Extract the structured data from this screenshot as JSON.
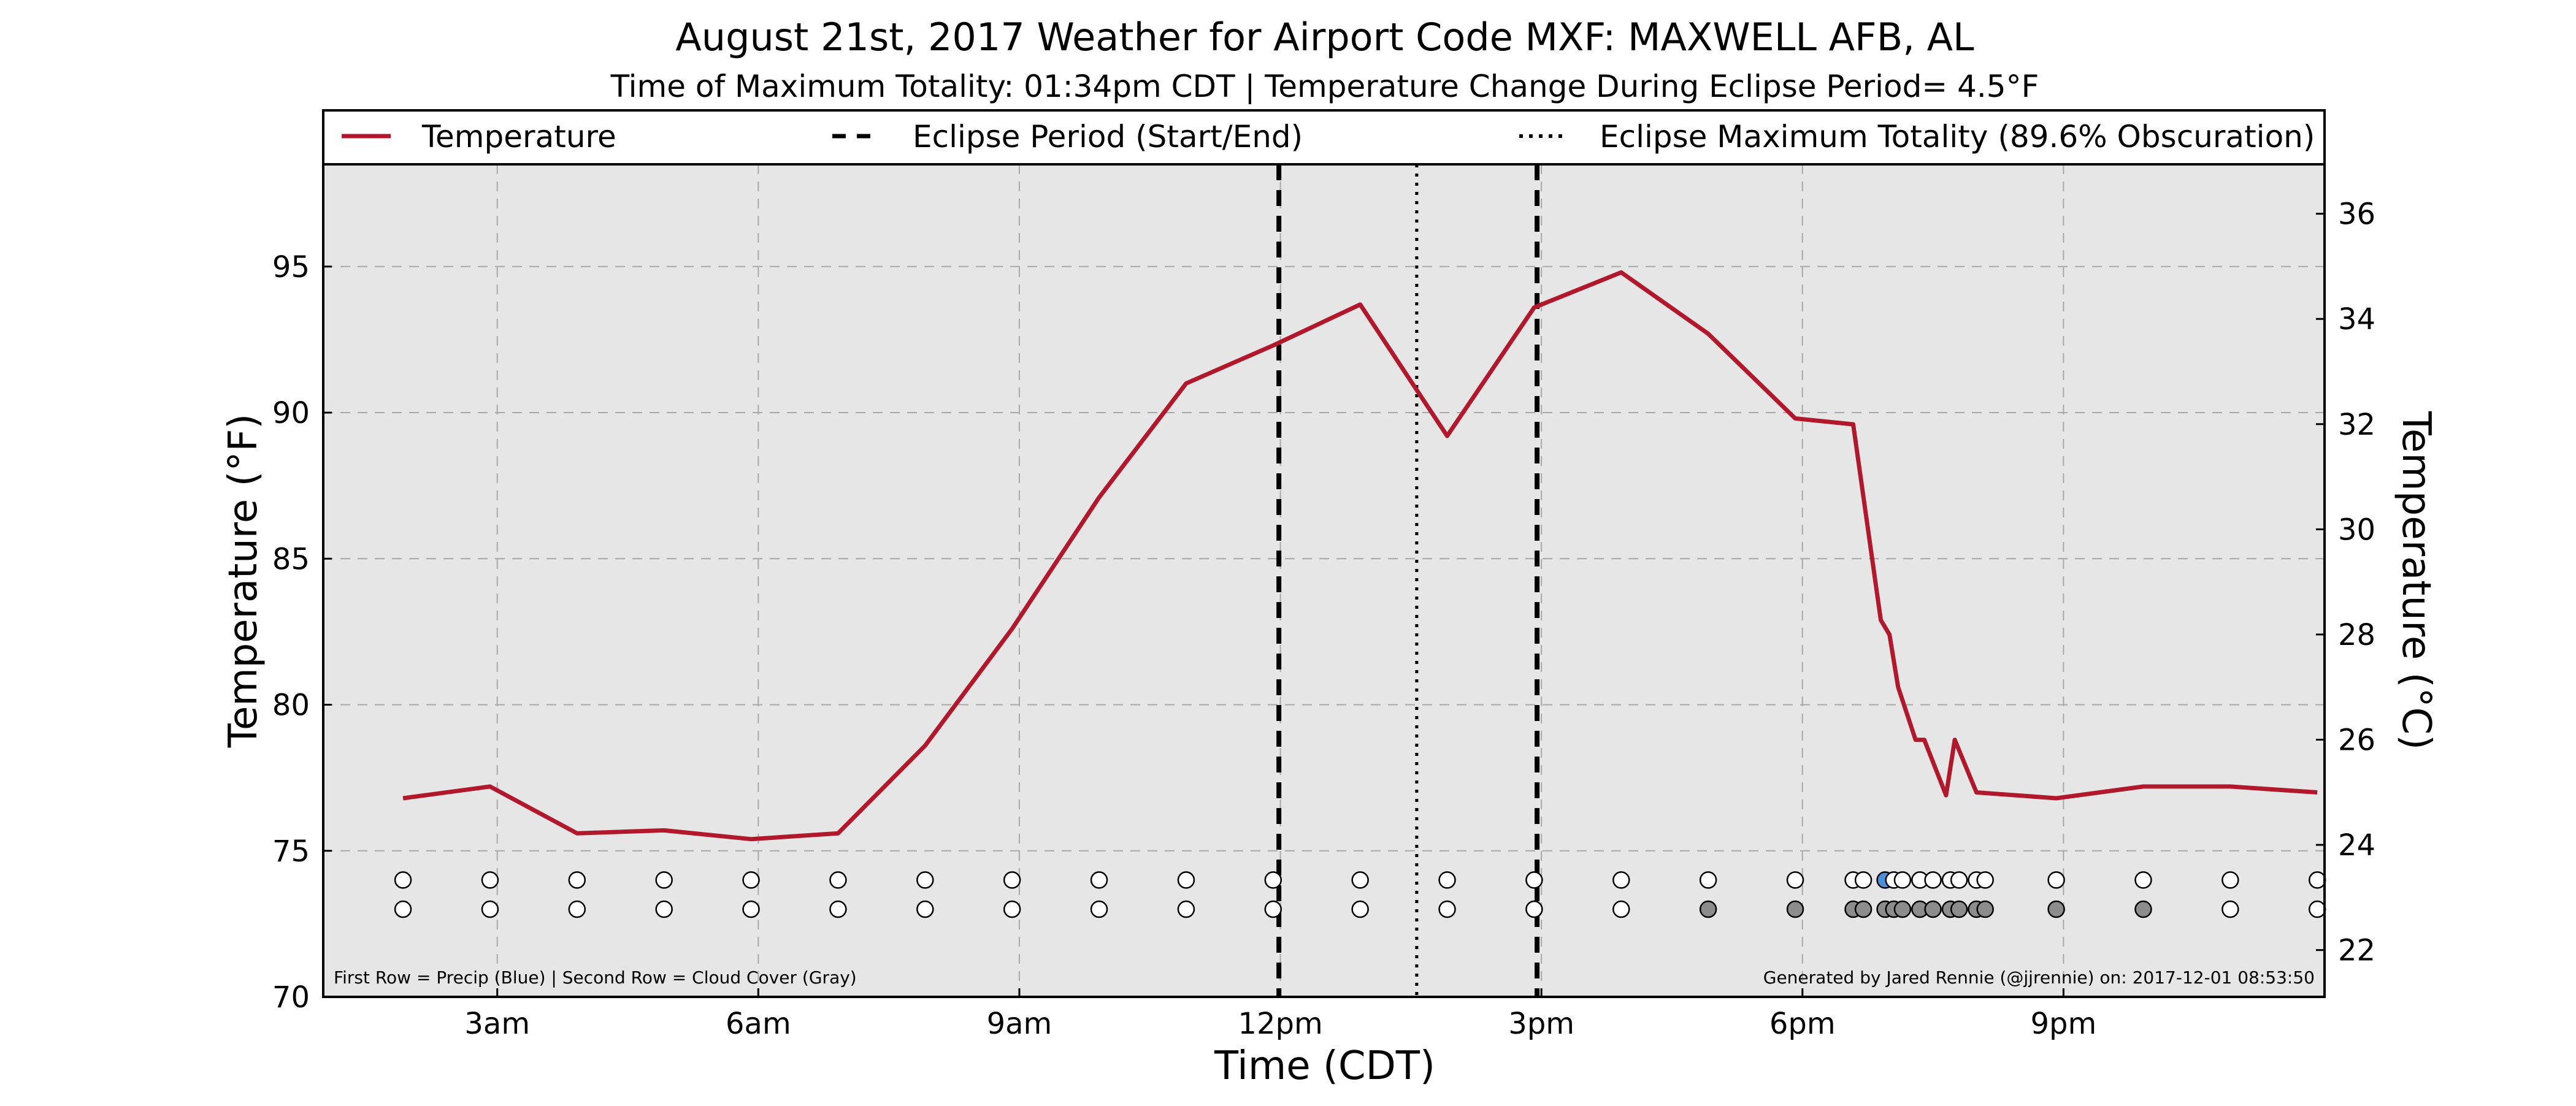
{
  "chart_data": {
    "type": "line",
    "title": "August 21st, 2017 Weather for Airport Code MXF: MAXWELL AFB, AL",
    "subtitle": "Time of Maximum Totality: 01:34pm CDT | Temperature Change During Eclipse Period= 4.5°F",
    "xlabel": "Time (CDT)",
    "ylabel": "Temperature (°F)",
    "y2label": "Temperature (°C)",
    "xlim": [
      1.0,
      24.0
    ],
    "ylim": [
      70,
      98.5
    ],
    "y2lim": [
      21.11,
      36.94
    ],
    "xticks": [
      {
        "value": 3,
        "label": "3am"
      },
      {
        "value": 6,
        "label": "6am"
      },
      {
        "value": 9,
        "label": "9am"
      },
      {
        "value": 12,
        "label": "12pm"
      },
      {
        "value": 15,
        "label": "3pm"
      },
      {
        "value": 18,
        "label": "6pm"
      },
      {
        "value": 21,
        "label": "9pm"
      }
    ],
    "yticks": [
      70,
      75,
      80,
      85,
      90,
      95
    ],
    "y2ticks": [
      22,
      24,
      26,
      28,
      30,
      32,
      34,
      36
    ],
    "grid": true,
    "legend_position": "top (above plot, full width)",
    "legend": [
      {
        "label": "Temperature",
        "style": "solid",
        "color": "#b2182b"
      },
      {
        "label": "Eclipse Period (Start/End)",
        "style": "dashed",
        "color": "#000000"
      },
      {
        "label": "Eclipse Maximum Totality (89.6% Obscuration)",
        "style": "dotted",
        "color": "#000000"
      }
    ],
    "series": [
      {
        "name": "Temperature",
        "color": "#b2182b",
        "x": [
          1.917,
          2.917,
          3.917,
          4.917,
          5.917,
          6.917,
          7.917,
          8.917,
          9.917,
          10.917,
          11.917,
          12.917,
          13.917,
          14.917,
          15.917,
          16.917,
          17.917,
          18.583,
          18.9,
          19.0,
          19.1,
          19.3,
          19.4,
          19.65,
          19.75,
          20.0,
          20.917,
          21.917,
          22.917,
          23.917
        ],
        "y": [
          76.8,
          77.2,
          75.6,
          75.7,
          75.4,
          75.6,
          78.6,
          82.6,
          87.1,
          91.0,
          92.3,
          93.7,
          89.2,
          93.6,
          94.8,
          92.7,
          89.8,
          89.6,
          82.9,
          82.4,
          80.6,
          78.8,
          78.8,
          76.9,
          78.8,
          77.0,
          76.8,
          77.2,
          77.2,
          77.0
        ]
      }
    ],
    "eclipse_period": {
      "start": 11.983,
      "end": 14.95
    },
    "max_totality": 13.567,
    "markers": {
      "x": [
        1.917,
        2.917,
        3.917,
        4.917,
        5.917,
        6.917,
        7.917,
        8.917,
        9.917,
        10.917,
        11.917,
        12.917,
        13.917,
        14.917,
        15.917,
        16.917,
        17.917,
        18.583,
        18.7,
        18.95,
        19.05,
        19.15,
        19.35,
        19.5,
        19.7,
        19.8,
        20.0,
        20.1,
        20.917,
        21.917,
        22.917,
        23.917
      ],
      "row1_label": "First Row = Precip (Blue)",
      "row2_label": "Second Row = Cloud Cover (Gray)",
      "precip": [
        0,
        0,
        0,
        0,
        0,
        0,
        0,
        0,
        0,
        0,
        0,
        0,
        0,
        0,
        0,
        0,
        0,
        0,
        0,
        1,
        0,
        0,
        0,
        0,
        0,
        0,
        0,
        0,
        0,
        0,
        0,
        0
      ],
      "cloud": [
        0,
        0,
        0,
        0,
        0,
        0,
        0,
        0,
        0,
        0,
        0,
        0,
        0,
        0,
        0,
        1,
        1,
        1,
        1,
        1,
        1,
        1,
        1,
        1,
        1,
        1,
        1,
        1,
        1,
        1,
        0,
        0
      ],
      "colors": {
        "empty": "#ffffff",
        "precip": "#4a90d9",
        "cloud": "#8c8c8c"
      }
    },
    "footnote_left": "First Row = Precip (Blue) | Second Row = Cloud Cover (Gray)",
    "footnote_right": "Generated by Jared Rennie (@jjrennie) on: 2017-12-01 08:53:50",
    "colors": {
      "plot_bg": "#e6e6e6",
      "grid": "#a8a8a8",
      "temperature": "#b2182b"
    }
  }
}
